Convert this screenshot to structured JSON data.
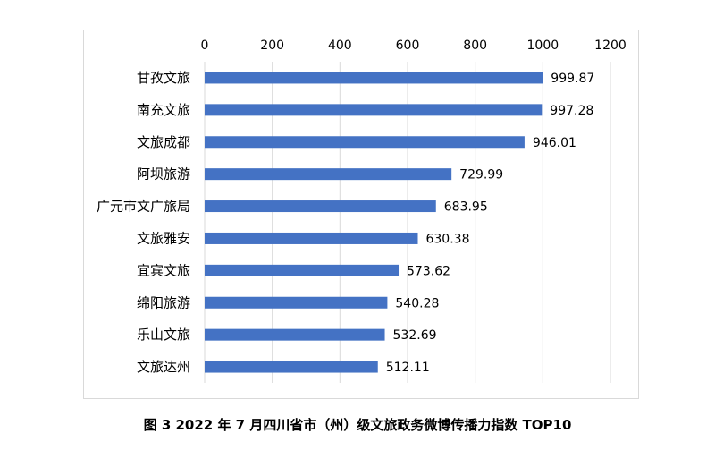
{
  "caption": "图 3 2022 年 7 月四川省市（州）级文旅政务微博传播力指数 TOP10",
  "colors": {
    "bar": "#4472C4",
    "grid": "#d9d9d9",
    "text": "#000000"
  },
  "chart_data": {
    "type": "bar",
    "orientation": "horizontal",
    "title": "",
    "xlabel": "",
    "ylabel": "",
    "xlim": [
      0,
      1200
    ],
    "x_ticks": [
      0,
      200,
      400,
      600,
      800,
      1000,
      1200
    ],
    "x_axis_position": "top",
    "grid": true,
    "legend": "none",
    "categories": [
      "甘孜文旅",
      "南充文旅",
      "文旅成都",
      "阿坝旅游",
      "广元市文广旅局",
      "文旅雅安",
      "宜宾文旅",
      "绵阳旅游",
      "乐山文旅",
      "文旅达州"
    ],
    "values": [
      999.87,
      997.28,
      946.01,
      729.99,
      683.95,
      630.38,
      573.62,
      540.28,
      532.69,
      512.11
    ],
    "data_labels": [
      "999.87",
      "997.28",
      "946.01",
      "729.99",
      "683.95",
      "630.38",
      "573.62",
      "540.28",
      "532.69",
      "512.11"
    ]
  }
}
